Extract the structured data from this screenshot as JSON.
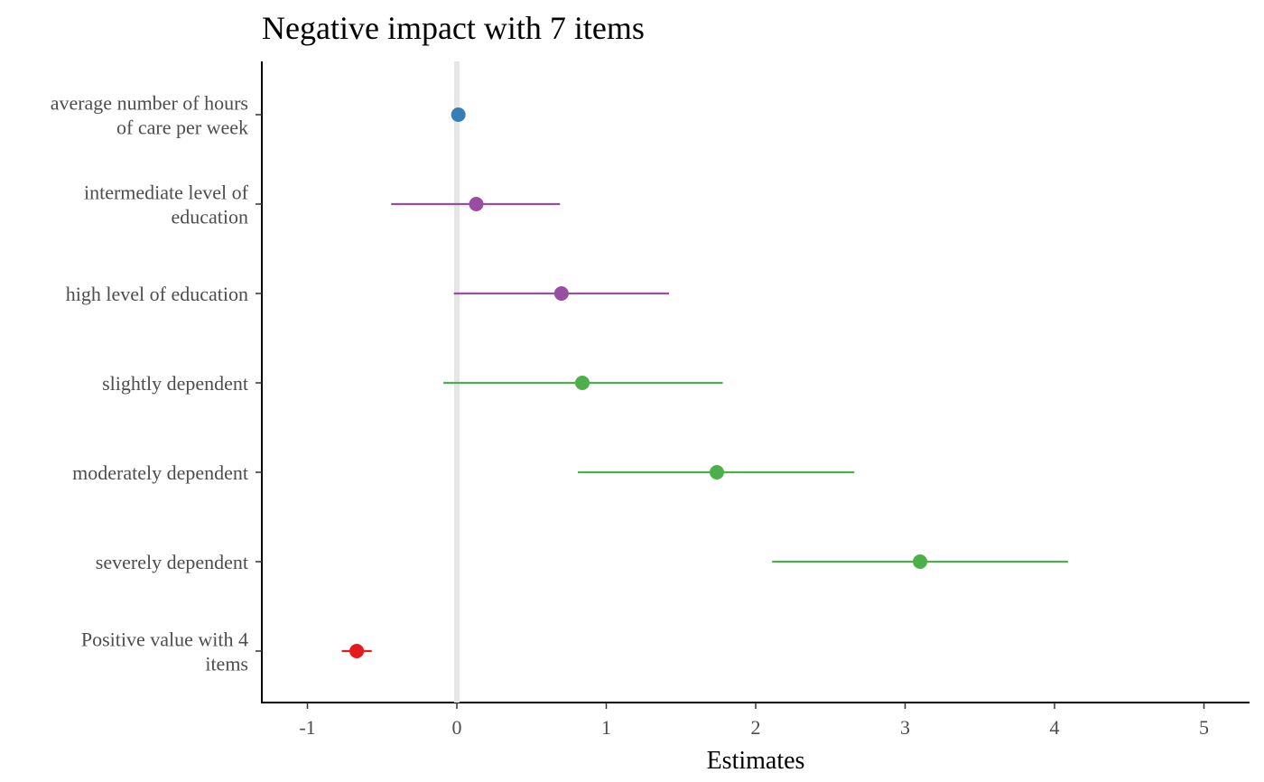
{
  "chart_data": {
    "type": "scatter",
    "subtype": "forest-plot",
    "title": "Negative impact with 7 items",
    "xlabel": "Estimates",
    "ylabel": "",
    "xlim": [
      -1.3,
      5.3
    ],
    "x_ticks": [
      -1,
      0,
      1,
      2,
      3,
      4,
      5
    ],
    "x_tick_labels": [
      "-1",
      "0",
      "1",
      "2",
      "3",
      "4",
      "5"
    ],
    "reference_line": 0,
    "grid": false,
    "legend": "none",
    "categories": [
      "average number of hours\nof care per week",
      "intermediate level of\neducation",
      "high level of education",
      "slightly dependent",
      "moderately dependent",
      "severely dependent",
      "Positive value with 4\nitems"
    ],
    "points": [
      {
        "label": "average number of hours\nof care per week",
        "estimate": 0.01,
        "ci_low": 0.0,
        "ci_high": 0.02,
        "color": "#377EB8"
      },
      {
        "label": "intermediate level of\neducation",
        "estimate": 0.13,
        "ci_low": -0.44,
        "ci_high": 0.69,
        "color": "#984EA3"
      },
      {
        "label": "high level of education",
        "estimate": 0.7,
        "ci_low": -0.02,
        "ci_high": 1.42,
        "color": "#984EA3"
      },
      {
        "label": "slightly dependent",
        "estimate": 0.84,
        "ci_low": -0.09,
        "ci_high": 1.78,
        "color": "#4DAF4A"
      },
      {
        "label": "moderately dependent",
        "estimate": 1.74,
        "ci_low": 0.81,
        "ci_high": 2.66,
        "color": "#4DAF4A"
      },
      {
        "label": "severely dependent",
        "estimate": 3.1,
        "ci_low": 2.11,
        "ci_high": 4.09,
        "color": "#4DAF4A"
      },
      {
        "label": "Positive value with 4\nitems",
        "estimate": -0.67,
        "ci_low": -0.77,
        "ci_high": -0.57,
        "color": "#E41A1C"
      }
    ]
  }
}
